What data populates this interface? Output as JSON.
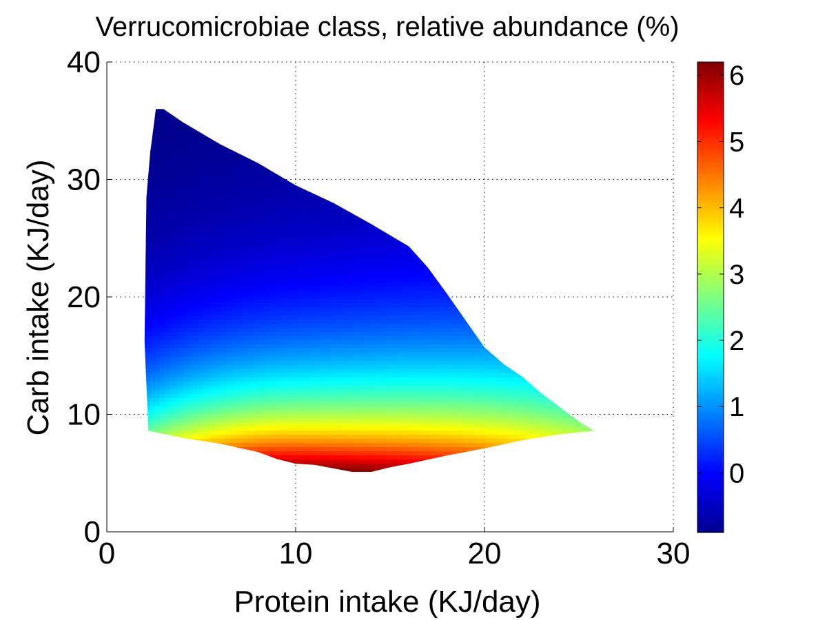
{
  "chart_data": {
    "type": "heatmap",
    "title": "Verrucomicrobiae class, relative abundance (%)",
    "xlabel": "Protein intake (KJ/day)",
    "ylabel": "Carb intake (KJ/day)",
    "xlim": [
      0,
      30
    ],
    "ylim": [
      0,
      40
    ],
    "xticks": [
      0,
      10,
      20,
      30
    ],
    "yticks": [
      0,
      10,
      20,
      30,
      40
    ],
    "grid": true,
    "grid_style": "dotted",
    "colormap": "jet",
    "colorbar": {
      "range": [
        -0.9,
        6.2
      ],
      "ticks": [
        0,
        1,
        2,
        3,
        4,
        5,
        6
      ]
    },
    "region": {
      "upper_boundary": [
        [
          2.1,
          28.5
        ],
        [
          2.3,
          32.3
        ],
        [
          2.6,
          36.0
        ],
        [
          3.0,
          36.0
        ],
        [
          4.0,
          34.9
        ],
        [
          6.0,
          33.0
        ],
        [
          8.0,
          31.4
        ],
        [
          10.0,
          29.5
        ],
        [
          12.0,
          28.0
        ],
        [
          14.0,
          26.2
        ],
        [
          16.0,
          24.3
        ],
        [
          17.0,
          22.5
        ],
        [
          18.0,
          20.3
        ],
        [
          19.0,
          18.0
        ],
        [
          20.0,
          15.7
        ],
        [
          21.0,
          14.3
        ],
        [
          22.0,
          13.2
        ],
        [
          23.0,
          11.8
        ],
        [
          24.0,
          10.6
        ],
        [
          25.0,
          9.4
        ],
        [
          25.5,
          8.9
        ]
      ],
      "lower_boundary": [
        [
          25.8,
          8.6
        ],
        [
          24.0,
          8.3
        ],
        [
          22.0,
          7.8
        ],
        [
          20.0,
          7.1
        ],
        [
          18.0,
          6.5
        ],
        [
          16.0,
          5.8
        ],
        [
          15.0,
          5.5
        ],
        [
          14.0,
          5.1
        ],
        [
          13.0,
          5.1
        ],
        [
          12.0,
          5.4
        ],
        [
          11.0,
          5.7
        ],
        [
          10.0,
          5.8
        ],
        [
          9.0,
          6.2
        ],
        [
          8.0,
          6.8
        ],
        [
          6.0,
          7.5
        ],
        [
          4.0,
          8.0
        ],
        [
          2.2,
          8.6
        ]
      ],
      "left_x": [
        2.0,
        2.3
      ]
    },
    "value_model": {
      "description": "abundance highest (~6) at low carb and moderate protein, decreasing with carb intake",
      "center_carb": 12,
      "peak": 6.2,
      "floor": -0.9
    }
  }
}
